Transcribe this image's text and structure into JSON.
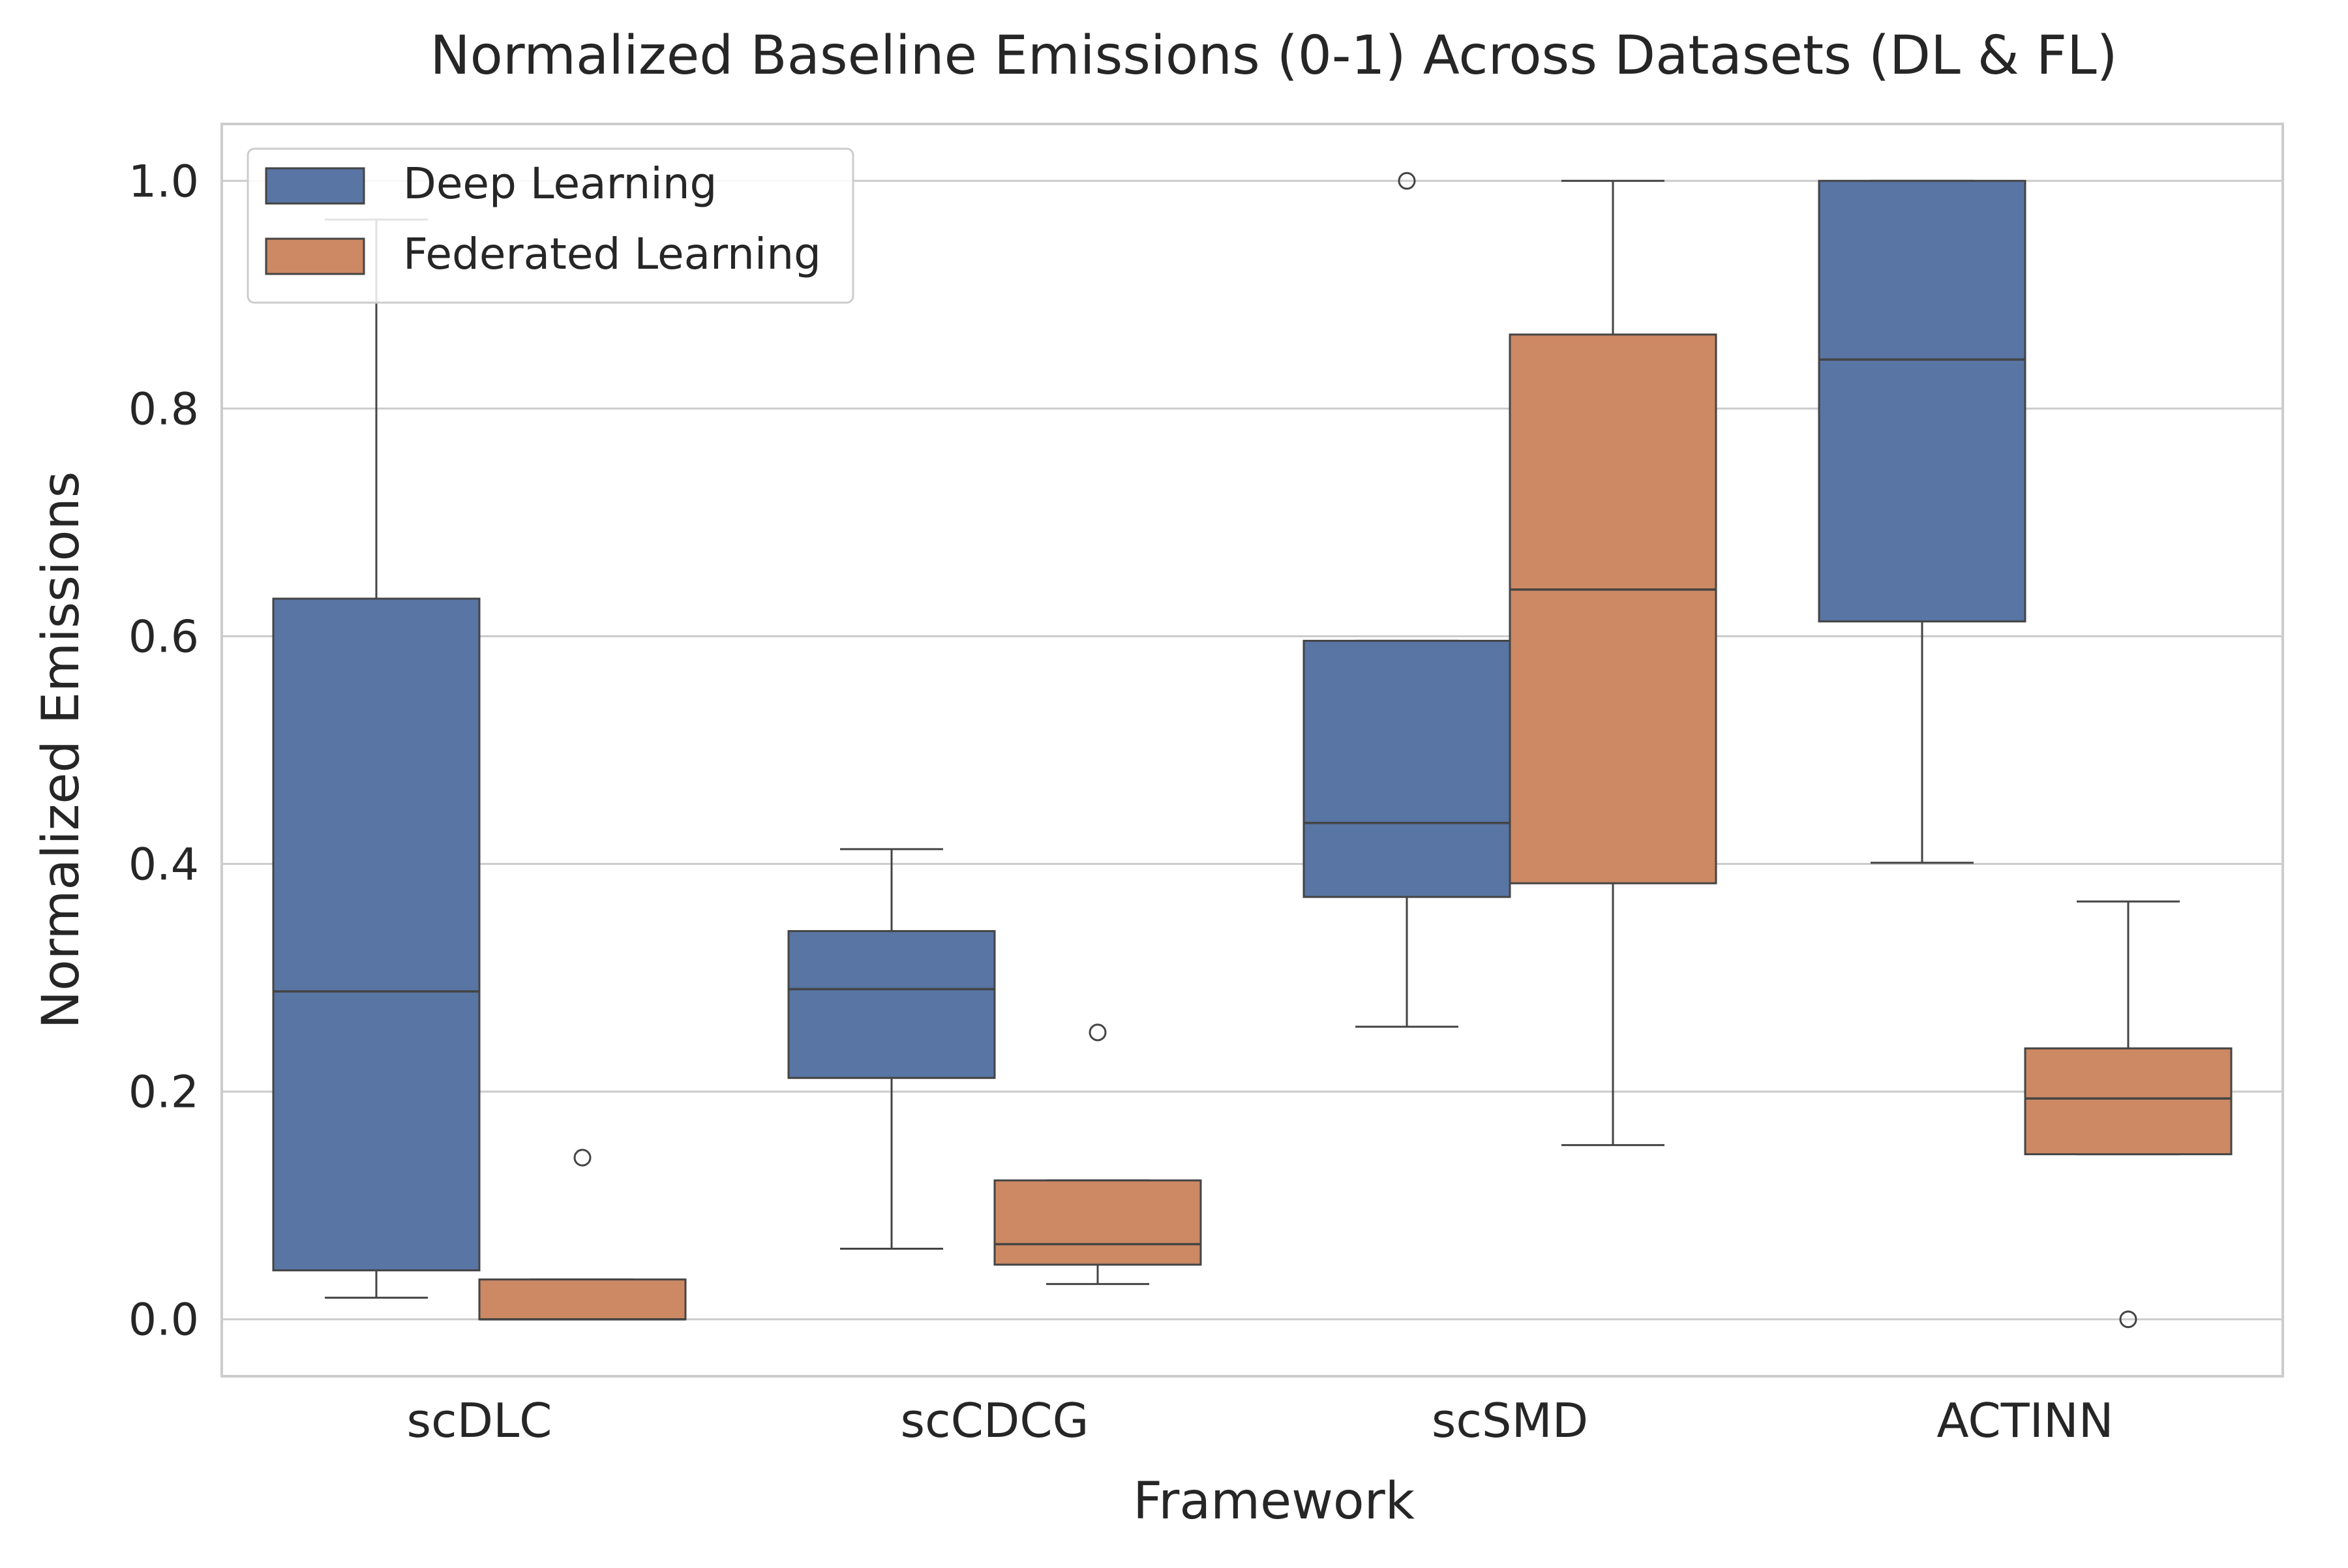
{
  "chart_data": {
    "type": "box",
    "title": "Normalized Baseline Emissions (0-1) Across Datasets (DL & FL)",
    "xlabel": "Framework",
    "ylabel": "Normalized Emissions",
    "ylim": [
      -0.05,
      1.05
    ],
    "yticks": [
      0.0,
      0.2,
      0.4,
      0.6,
      0.8,
      1.0
    ],
    "ytick_labels": [
      "0.0",
      "0.2",
      "0.4",
      "0.6",
      "0.8",
      "1.0"
    ],
    "categories": [
      "scDLC",
      "scCDCG",
      "scSMD",
      "ACTINN"
    ],
    "grid": true,
    "legend_position": "top-left",
    "series": [
      {
        "name": "Deep Learning",
        "color": "#5875a4",
        "boxes": [
          {
            "whisker_low": 0.019,
            "q1": 0.043,
            "median": 0.288,
            "q3": 0.633,
            "whisker_high": 0.966,
            "outliers": []
          },
          {
            "whisker_low": 0.062,
            "q1": 0.212,
            "median": 0.29,
            "q3": 0.341,
            "whisker_high": 0.413,
            "outliers": []
          },
          {
            "whisker_low": 0.257,
            "q1": 0.371,
            "median": 0.436,
            "q3": 0.596,
            "whisker_high": 0.596,
            "outliers": [
              1.0
            ]
          },
          {
            "whisker_low": 0.401,
            "q1": 0.613,
            "median": 0.843,
            "q3": 1.0,
            "whisker_high": 1.0,
            "outliers": []
          }
        ]
      },
      {
        "name": "Federated Learning",
        "color": "#cc8963",
        "boxes": [
          {
            "whisker_low": 0.0,
            "q1": 0.0,
            "median": 0.0,
            "q3": 0.035,
            "whisker_high": 0.035,
            "outliers": [
              0.142
            ]
          },
          {
            "whisker_low": 0.031,
            "q1": 0.048,
            "median": 0.066,
            "q3": 0.122,
            "whisker_high": 0.122,
            "outliers": [
              0.252
            ]
          },
          {
            "whisker_low": 0.153,
            "q1": 0.383,
            "median": 0.641,
            "q3": 0.865,
            "whisker_high": 1.0,
            "outliers": []
          },
          {
            "whisker_low": 0.145,
            "q1": 0.145,
            "median": 0.194,
            "q3": 0.238,
            "whisker_high": 0.367,
            "outliers": [
              0.0
            ]
          }
        ]
      }
    ]
  }
}
